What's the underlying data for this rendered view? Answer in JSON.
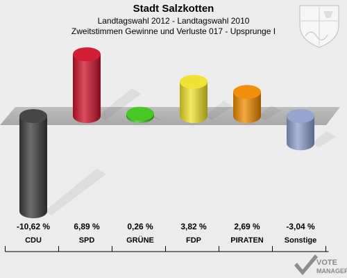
{
  "chart_data": {
    "type": "bar",
    "title": "Stadt Salzkotten",
    "subtitle": "Landtagswahl 2012 - Landtagswahl 2010",
    "subtitle2": "Zweitstimmen Gewinne und Verluste 017 - Upsprunge I",
    "categories": [
      "CDU",
      "SPD",
      "GRÜNE",
      "FDP",
      "PIRATEN",
      "Sonstige"
    ],
    "values": [
      -10.62,
      6.89,
      0.26,
      3.82,
      2.69,
      -3.04
    ],
    "value_labels": [
      "-10,62 %",
      "6,89 %",
      "0,26 %",
      "3,82 %",
      "2,69 %",
      "-3,04 %"
    ],
    "colors": [
      "#3c3c3c",
      "#d0112b",
      "#3fc41a",
      "#f0e22a",
      "#f08a00",
      "#8fa0cc"
    ],
    "ylim": [
      -11,
      7.5
    ],
    "grid": false
  },
  "watermark": "VOTE MANAGER"
}
